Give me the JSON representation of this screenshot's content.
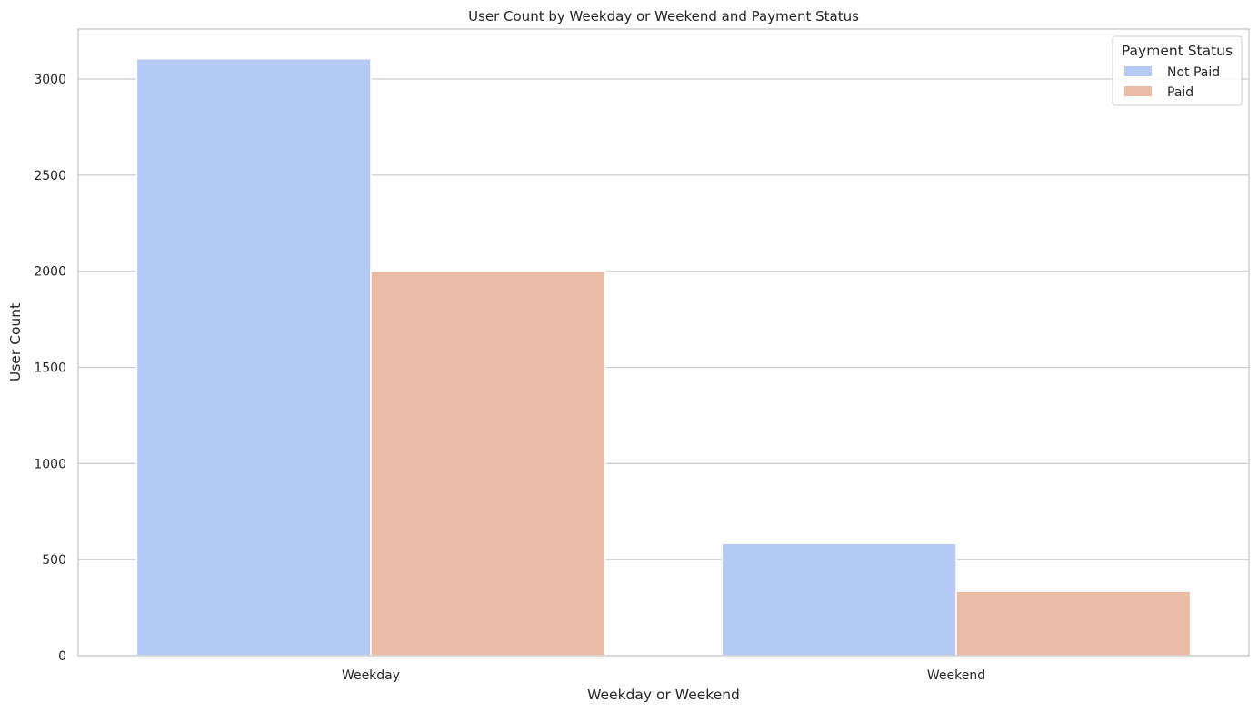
{
  "chart_data": {
    "type": "bar",
    "title": "User Count by Weekday or Weekend and Payment Status",
    "xlabel": "Weekday or Weekend",
    "ylabel": "User Count",
    "categories": [
      "Weekday",
      "Weekend"
    ],
    "series": [
      {
        "name": "Not Paid",
        "color": "#b4c9f3",
        "values": [
          3105,
          585
        ]
      },
      {
        "name": "Paid",
        "color": "#eabca7",
        "values": [
          2000,
          335
        ]
      }
    ],
    "ylim": [
      0,
      3260
    ],
    "yticks": [
      0,
      500,
      1000,
      1500,
      2000,
      2500,
      3000
    ],
    "ytick_labels": [
      "0",
      "500",
      "1000",
      "1500",
      "2000",
      "2500",
      "3000"
    ],
    "grid": "horizontal",
    "legend": {
      "title": "Payment Status",
      "placement": "top-right"
    }
  }
}
